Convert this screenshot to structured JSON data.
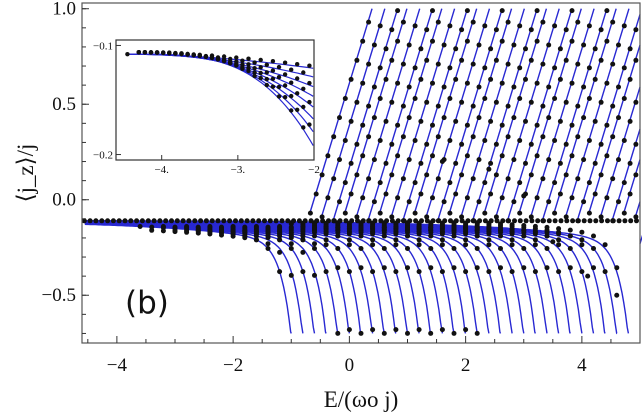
{
  "panel_label": "(b)",
  "colors": {
    "model_line": "#2828d2",
    "simulation_dots": "#111111",
    "frame": "#555555"
  },
  "chart_data": [
    {
      "type": "line",
      "role": "main",
      "xlabel": "E/(ωo j)",
      "ylabel": "⟨j_z⟩/j",
      "xlim": [
        -4.6,
        5.0
      ],
      "ylim": [
        -0.75,
        1.03
      ],
      "xticks": [
        -4,
        -2,
        0,
        2,
        4
      ],
      "xtick_labels": [
        "−4",
        "−2",
        "0",
        "2",
        "4"
      ],
      "yticks": [
        -0.5,
        0.0,
        0.5,
        1.0
      ],
      "ytick_labels": [
        "−0.5",
        "0.0",
        "0.5",
        "1.0"
      ],
      "grid": false,
      "series": [
        {
          "kind": "blue solid lines",
          "start_energies": [
            -1.0,
            -0.8,
            -0.6,
            -0.4,
            -0.2,
            0.0,
            0.2,
            0.4,
            0.6,
            0.8,
            1.0,
            1.2,
            1.4,
            1.6,
            1.8,
            2.0,
            2.2,
            2.4,
            2.6,
            2.8,
            3.0,
            3.2,
            3.4,
            3.6,
            3.8,
            4.0,
            4.2,
            4.4,
            4.6,
            4.8
          ],
          "lower_branch_floor": -0.7,
          "flat_level": -0.11,
          "upper_branch_endpoint": [
            1.0,
            1.0
          ],
          "upper_branch_slope": 1.0
        },
        {
          "kind": "black dots",
          "description_from_plot": "points following the blue curves, scattered above -0.7 near each dip"
        }
      ]
    },
    {
      "type": "line",
      "role": "inset",
      "xlim": [
        -4.6,
        -2.0
      ],
      "ylim": [
        -0.205,
        -0.095
      ],
      "xticks": [
        -4,
        -3,
        -2
      ],
      "xtick_labels": [
        "−4.",
        "−3.",
        "−2"
      ],
      "yticks": [
        -0.1,
        -0.2
      ],
      "ytick_labels": [
        "−0.1",
        "−0.2"
      ],
      "curves": [
        {
          "end_value": -0.121
        },
        {
          "end_value": -0.129
        },
        {
          "end_value": -0.138
        },
        {
          "end_value": -0.147
        },
        {
          "end_value": -0.157
        },
        {
          "end_value": -0.168
        },
        {
          "end_value": -0.18
        },
        {
          "end_value": -0.193
        }
      ],
      "start_point": [
        -4.45,
        -0.108
      ]
    }
  ]
}
